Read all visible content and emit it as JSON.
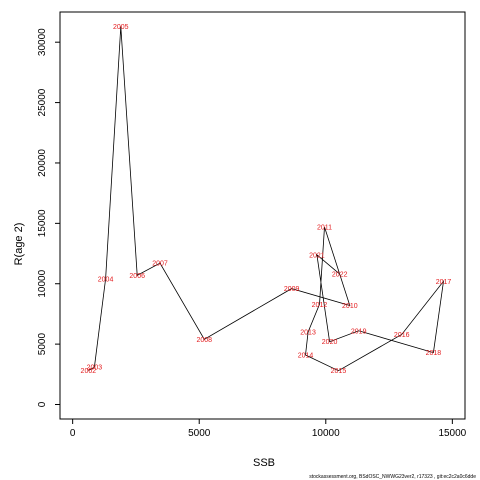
{
  "chart_data": {
    "type": "line",
    "title": "",
    "xlabel": "SSB",
    "ylabel": "R(age 2)",
    "xlim": [
      -500,
      15500
    ],
    "ylim": [
      -1200,
      32500
    ],
    "x_ticks": [
      0,
      5000,
      10000,
      15000
    ],
    "y_ticks": [
      0,
      5000,
      10000,
      15000,
      20000,
      25000,
      30000
    ],
    "grid": false,
    "line_color": "#000000",
    "label_color": "#e31a1c",
    "points": [
      {
        "year": "2002",
        "x": 620,
        "y": 2800
      },
      {
        "year": "2003",
        "x": 860,
        "y": 3100
      },
      {
        "year": "2004",
        "x": 1300,
        "y": 10400
      },
      {
        "year": "2005",
        "x": 1900,
        "y": 31300
      },
      {
        "year": "2006",
        "x": 2550,
        "y": 10700
      },
      {
        "year": "2007",
        "x": 3450,
        "y": 11700
      },
      {
        "year": "2008",
        "x": 5200,
        "y": 5400
      },
      {
        "year": "2009",
        "x": 8650,
        "y": 9600
      },
      {
        "year": "2010",
        "x": 10950,
        "y": 8200
      },
      {
        "year": "2011",
        "x": 9950,
        "y": 14700
      },
      {
        "year": "2012",
        "x": 9750,
        "y": 8300
      },
      {
        "year": "2013",
        "x": 9300,
        "y": 6000
      },
      {
        "year": "2014",
        "x": 9200,
        "y": 4100
      },
      {
        "year": "2015",
        "x": 10500,
        "y": 2800
      },
      {
        "year": "2016",
        "x": 13000,
        "y": 5800
      },
      {
        "year": "2017",
        "x": 14650,
        "y": 10200
      },
      {
        "year": "2018",
        "x": 14250,
        "y": 4300
      },
      {
        "year": "2019",
        "x": 11300,
        "y": 6100
      },
      {
        "year": "2020",
        "x": 10150,
        "y": 5200
      },
      {
        "year": "2021",
        "x": 9650,
        "y": 12400
      },
      {
        "year": "2022",
        "x": 10550,
        "y": 10800
      }
    ]
  },
  "footer_text": "stockassessment.org, BSdOSC_NWWG23ver2, r17323 , git:ec2c2a0c6dde"
}
